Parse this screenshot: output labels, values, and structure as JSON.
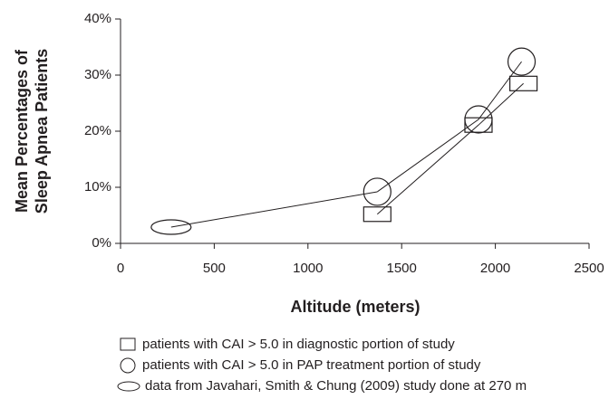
{
  "chart_data": {
    "type": "scatter",
    "xlabel": "Altitude (meters)",
    "ylabel": [
      "Mean Percentages of",
      "Sleep Apnea Patients"
    ],
    "xlim": [
      0,
      2500
    ],
    "xticks": [
      0,
      500,
      1000,
      1500,
      2000,
      2500
    ],
    "ylim": [
      0,
      40
    ],
    "yticks": [
      {
        "value": 0,
        "label": "0%"
      },
      {
        "value": 10,
        "label": "10%"
      },
      {
        "value": 20,
        "label": "20%"
      },
      {
        "value": 30,
        "label": "30%"
      },
      {
        "value": 40,
        "label": "40%"
      }
    ],
    "series": [
      {
        "name": "patients with CAI > 5.0 in diagnostic portion of study",
        "marker": "square",
        "color": "#231f20",
        "x": [
          1370,
          1910,
          2150
        ],
        "values": [
          5.2,
          21.1,
          28.5
        ]
      },
      {
        "name": "patients with CAI > 5.0 in PAP treatment portion of study",
        "marker": "circle",
        "color": "#231f20",
        "x": [
          1370,
          1910,
          2140
        ],
        "values": [
          9.2,
          22.1,
          32.4
        ]
      },
      {
        "name": "data from Javahari, Smith & Chung (2009) study done at 270 m",
        "marker": "ellipse",
        "color": "#231f20",
        "x": [
          270
        ],
        "values": [
          2.9
        ]
      }
    ]
  }
}
